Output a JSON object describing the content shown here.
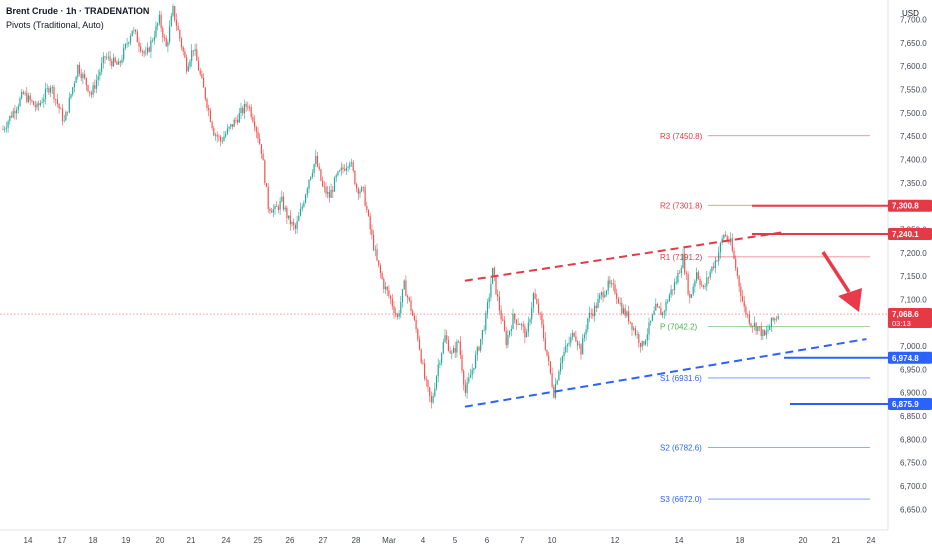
{
  "header": {
    "title": "Brent Crude · 1h · TRADENATION",
    "indicator": "Pivots (Traditional, Auto)"
  },
  "currency": "USD",
  "colors": {
    "bull": "#26a69a",
    "bear": "#ef5350",
    "resistance": "#e53945",
    "support": "#2962ff",
    "pivot": "#4caf50",
    "arrow": "#e83a4a",
    "axis_text": "#131722",
    "current_price": "#e53945"
  },
  "chart_data": {
    "type": "candlestick",
    "title": "Brent Crude · 1h · TRADENATION",
    "ylim": [
      6625,
      7725
    ],
    "y_ticks": [
      6650,
      6700,
      6750,
      6800,
      6850,
      6900,
      6950,
      7000,
      7050,
      7100,
      7150,
      7200,
      7250,
      7300,
      7350,
      7400,
      7450,
      7500,
      7550,
      7600,
      7650,
      7700
    ],
    "x_ticks": [
      "14",
      "17",
      "18",
      "19",
      "20",
      "21",
      "24",
      "25",
      "26",
      "27",
      "28",
      "Mar",
      "4",
      "5",
      "6",
      "7",
      "10",
      "12",
      "14",
      "18",
      "20",
      "21",
      "24"
    ],
    "price_path": [
      [
        0,
        7465
      ],
      [
        3,
        7540
      ],
      [
        5,
        7510
      ],
      [
        7,
        7560
      ],
      [
        9,
        7480
      ],
      [
        11,
        7600
      ],
      [
        13,
        7540
      ],
      [
        15,
        7620
      ],
      [
        17,
        7600
      ],
      [
        19,
        7680
      ],
      [
        21,
        7620
      ],
      [
        23,
        7700
      ],
      [
        24,
        7640
      ],
      [
        25,
        7720
      ],
      [
        26,
        7660
      ],
      [
        27,
        7600
      ],
      [
        28,
        7640
      ],
      [
        29,
        7580
      ],
      [
        30,
        7520
      ],
      [
        31,
        7460
      ],
      [
        32,
        7440
      ],
      [
        33,
        7460
      ],
      [
        34,
        7480
      ],
      [
        35,
        7500
      ],
      [
        36,
        7520
      ],
      [
        37,
        7480
      ],
      [
        38,
        7420
      ],
      [
        39,
        7300
      ],
      [
        40,
        7290
      ],
      [
        41,
        7310
      ],
      [
        42,
        7270
      ],
      [
        43,
        7250
      ],
      [
        44,
        7300
      ],
      [
        45,
        7360
      ],
      [
        46,
        7400
      ],
      [
        47,
        7340
      ],
      [
        48,
        7320
      ],
      [
        49,
        7360
      ],
      [
        50,
        7380
      ],
      [
        51,
        7400
      ],
      [
        52,
        7340
      ],
      [
        53,
        7330
      ],
      [
        54,
        7250
      ],
      [
        55,
        7180
      ],
      [
        56,
        7130
      ],
      [
        57,
        7100
      ],
      [
        58,
        7060
      ],
      [
        59,
        7130
      ],
      [
        60,
        7080
      ],
      [
        61,
        7020
      ],
      [
        62,
        6930
      ],
      [
        63,
        6875
      ],
      [
        64,
        6960
      ],
      [
        65,
        7020
      ],
      [
        66,
        6980
      ],
      [
        67,
        7010
      ],
      [
        68,
        6900
      ],
      [
        69,
        6950
      ],
      [
        70,
        7000
      ],
      [
        71,
        7060
      ],
      [
        72,
        7160
      ],
      [
        73,
        7080
      ],
      [
        74,
        7010
      ],
      [
        75,
        7060
      ],
      [
        76,
        7050
      ],
      [
        77,
        7020
      ],
      [
        78,
        7110
      ],
      [
        79,
        7060
      ],
      [
        80,
        6980
      ],
      [
        81,
        6900
      ],
      [
        82,
        6970
      ],
      [
        83,
        7000
      ],
      [
        84,
        7030
      ],
      [
        85,
        6990
      ],
      [
        86,
        7060
      ],
      [
        87,
        7080
      ],
      [
        88,
        7110
      ],
      [
        89,
        7130
      ],
      [
        90,
        7120
      ],
      [
        91,
        7080
      ],
      [
        92,
        7060
      ],
      [
        93,
        7030
      ],
      [
        94,
        7000
      ],
      [
        95,
        7040
      ],
      [
        96,
        7080
      ],
      [
        97,
        7070
      ],
      [
        98,
        7110
      ],
      [
        99,
        7140
      ],
      [
        100,
        7190
      ],
      [
        101,
        7100
      ],
      [
        102,
        7160
      ],
      [
        103,
        7120
      ],
      [
        104,
        7160
      ],
      [
        105,
        7190
      ],
      [
        106,
        7240
      ],
      [
        107,
        7220
      ],
      [
        108,
        7150
      ],
      [
        109,
        7080
      ],
      [
        110,
        7050
      ],
      [
        111,
        7040
      ],
      [
        112,
        7020
      ],
      [
        113,
        7050
      ],
      [
        114,
        7068
      ]
    ],
    "pivots": [
      {
        "label": "R3",
        "value": 7450.8,
        "text": "R3 (7450.8)"
      },
      {
        "label": "R2",
        "value": 7301.8,
        "text": "R2 (7301.8)"
      },
      {
        "label": "R1",
        "value": 7191.2,
        "text": "R1 (7191.2)"
      },
      {
        "label": "P",
        "value": 7042.2,
        "text": "P (7042.2)"
      },
      {
        "label": "S1",
        "value": 6931.6,
        "text": "S1 (6931.6)"
      },
      {
        "label": "S2",
        "value": 6782.6,
        "text": "S2 (6782.6)"
      },
      {
        "label": "S3",
        "value": 6672.0,
        "text": "S3 (6672.0)"
      }
    ],
    "price_tags": [
      {
        "value": 7300.8,
        "text": "7,300.8",
        "kind": "resistance"
      },
      {
        "value": 7240.1,
        "text": "7,240.1",
        "kind": "resistance"
      },
      {
        "value": 7068.6,
        "text": "7,068.6",
        "sub": "03:13",
        "kind": "current"
      },
      {
        "value": 6974.8,
        "text": "6,974.8",
        "kind": "support"
      },
      {
        "value": 6875.9,
        "text": "6,875.9",
        "kind": "support"
      }
    ],
    "trendlines": [
      {
        "name": "upper-channel",
        "from": [
          63,
          7140
        ],
        "to": [
          107,
          7245
        ],
        "style": "dashed",
        "kind": "resistance"
      },
      {
        "name": "lower-channel",
        "from": [
          63,
          6870
        ],
        "to": [
          118,
          7015
        ],
        "style": "dashed",
        "kind": "support"
      }
    ],
    "current_price": 7068.6
  }
}
